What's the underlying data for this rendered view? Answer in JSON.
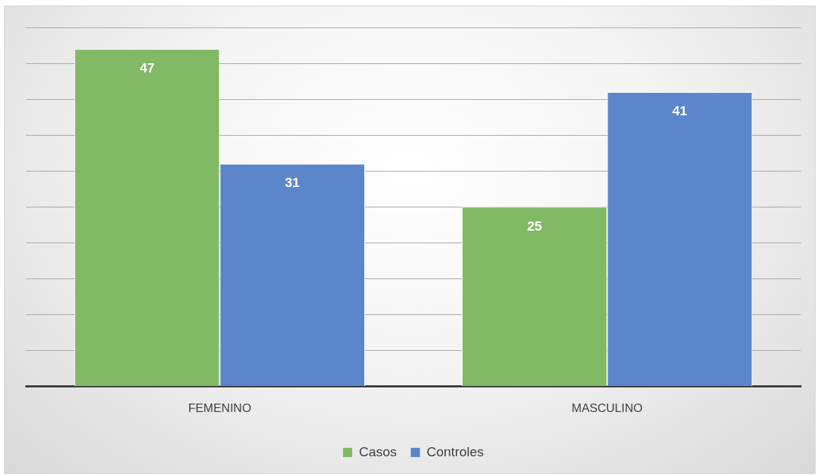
{
  "chart_data": {
    "type": "bar",
    "categories": [
      "FEMENINO",
      "MASCULINO"
    ],
    "series": [
      {
        "name": "Casos",
        "color": "#82b964",
        "values": [
          47,
          25
        ]
      },
      {
        "name": "Controles",
        "color": "#5b86cc",
        "values": [
          31,
          41
        ]
      }
    ],
    "ylim": [
      0,
      50
    ],
    "yticks": [
      {
        "value": 0,
        "label": null
      },
      {
        "value": 5,
        "label": null
      },
      {
        "value": 10,
        "label": null
      },
      {
        "value": 15,
        "label": null
      },
      {
        "value": 20,
        "label": null
      },
      {
        "value": 25,
        "label": null
      },
      {
        "value": 30,
        "label": null
      },
      {
        "value": 35,
        "label": null
      },
      {
        "value": 40,
        "label": null
      },
      {
        "value": 45,
        "label": null
      },
      {
        "value": 50,
        "label": null
      }
    ],
    "grid": "y",
    "legend": "bottom",
    "data_labels": true,
    "tick_labels": "x"
  }
}
